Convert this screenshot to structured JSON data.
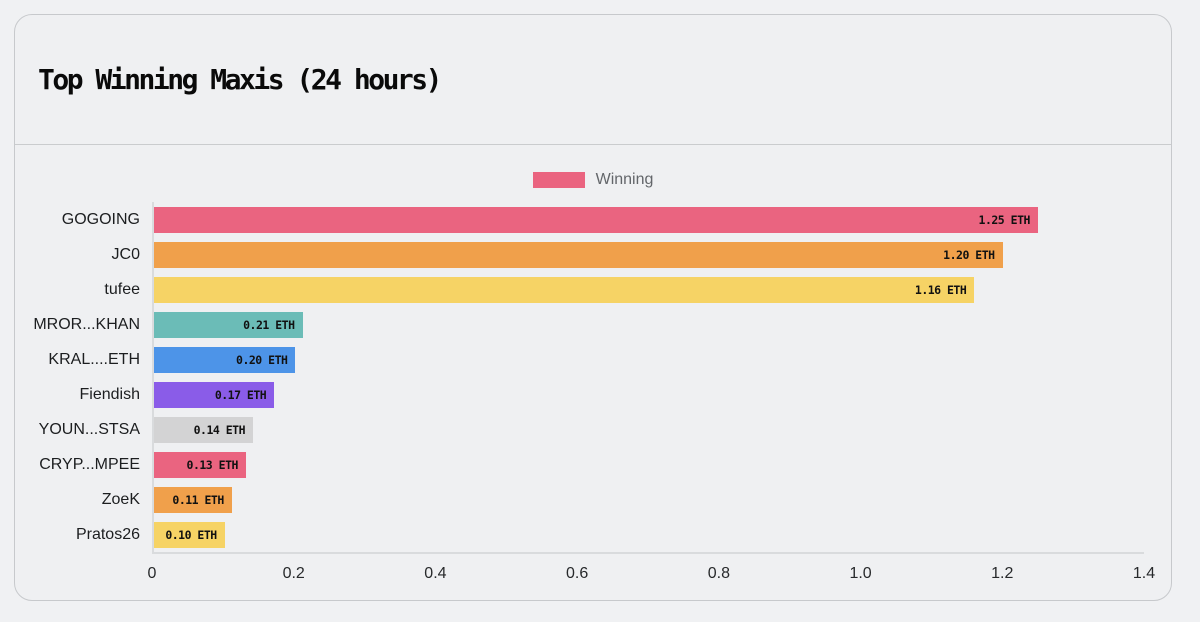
{
  "panel": {
    "title": "Top Winning Maxis (24 hours)"
  },
  "legend": {
    "label": "Winning",
    "swatch_color": "#ea6480"
  },
  "chart_data": {
    "type": "bar",
    "orientation": "horizontal",
    "title": "Top Winning Maxis (24 hours)",
    "legend_entries": [
      {
        "label": "Winning",
        "color": "#ea6480"
      }
    ],
    "legend_position": "top-center",
    "categories": [
      "GOGOING",
      "JC0",
      "tufee",
      "MROR...KHAN",
      "KRAL....ETH",
      "Fiendish",
      "YOUN...STSA",
      "CRYP...MPEE",
      "ZoeK",
      "Pratos26"
    ],
    "values": [
      1.25,
      1.2,
      1.16,
      0.21,
      0.2,
      0.17,
      0.14,
      0.13,
      0.11,
      0.1
    ],
    "value_labels": [
      "1.25 ETH",
      "1.20 ETH",
      "1.16 ETH",
      "0.21 ETH",
      "0.20 ETH",
      "0.17 ETH",
      "0.14 ETH",
      "0.13 ETH",
      "0.11 ETH",
      "0.10 ETH"
    ],
    "bar_colors": [
      "#ea6480",
      "#f0a04b",
      "#f6d365",
      "#6bbcb7",
      "#4d94e8",
      "#8a5ce8",
      "#d3d3d4",
      "#ea6480",
      "#f0a04b",
      "#f6d365"
    ],
    "xlabel": "",
    "ylabel": "",
    "xlim": [
      0,
      1.4
    ],
    "x_ticks": [
      0,
      0.2,
      0.4,
      0.6,
      0.8,
      1.0,
      1.2,
      1.4
    ],
    "x_tick_labels": [
      "0",
      "0.2",
      "0.4",
      "0.6",
      "0.8",
      "1.0",
      "1.2",
      "1.4"
    ],
    "grid": false
  }
}
